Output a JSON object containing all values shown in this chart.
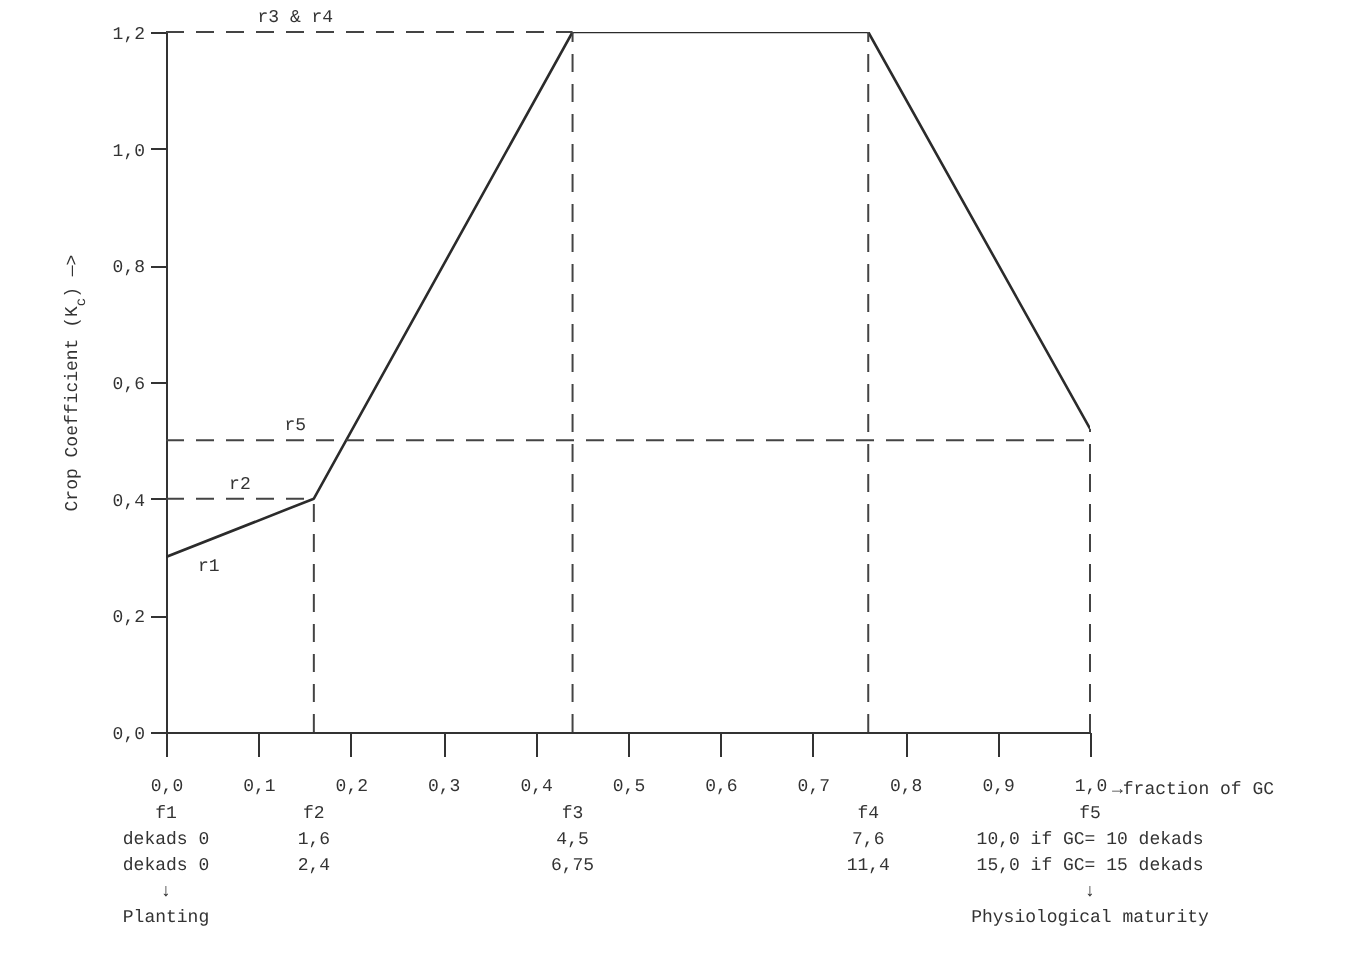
{
  "chart_data": {
    "type": "line",
    "xlabel": "→fraction of GC",
    "ylabel": "Crop Coefficient (K$_{c}$) —>",
    "x": [
      0,
      0.16,
      0.44,
      0.76,
      1.0
    ],
    "series": [
      {
        "color": "#2b2b2b",
        "values": [
          0.3,
          0.4,
          1.2,
          1.2,
          0.52
        ]
      }
    ],
    "xlim": [
      0,
      1.0
    ],
    "ylim": [
      0,
      1.2
    ],
    "xticks": [
      {
        "value": 0,
        "label": "0,0"
      },
      {
        "value": 0.1,
        "label": "0,1"
      },
      {
        "value": 0.2,
        "label": "0,2"
      },
      {
        "value": 0.3,
        "label": "0,3"
      },
      {
        "value": 0.4,
        "label": "0,4"
      },
      {
        "value": 0.5,
        "label": "0,5"
      },
      {
        "value": 0.6,
        "label": "0,6"
      },
      {
        "value": 0.7,
        "label": "0,7"
      },
      {
        "value": 0.8,
        "label": "0,8"
      },
      {
        "value": 0.9,
        "label": "0,9"
      },
      {
        "value": 1.0,
        "label": "1,0"
      }
    ],
    "yticks": [
      {
        "value": 0,
        "label": "0,0"
      },
      {
        "value": 0.2,
        "label": "0,2"
      },
      {
        "value": 0.4,
        "label": "0,4"
      },
      {
        "value": 0.6,
        "label": "0,6"
      },
      {
        "value": 0.8,
        "label": "0,8"
      },
      {
        "value": 1.0,
        "label": "1,0"
      },
      {
        "value": 1.2,
        "label": "1,2"
      }
    ],
    "ref_lines": [
      {
        "axis": "y",
        "value": 1.2,
        "label": "r3 & r4",
        "line_style": "dashed"
      },
      {
        "axis": "y",
        "value": 0.4,
        "label": "r2",
        "line_style": "dashed"
      },
      {
        "axis": "y",
        "value": 0.5,
        "label": "r5",
        "line_style": "dashed"
      },
      {
        "axis": "x",
        "value": 0.16,
        "line_style": "dashed"
      },
      {
        "axis": "x",
        "value": 0.44,
        "line_style": "dashed"
      },
      {
        "axis": "x",
        "value": 0.76,
        "line_style": "dashed"
      },
      {
        "axis": "x",
        "value": 1.0,
        "line_style": "dashed"
      }
    ],
    "annotations": [
      {
        "text": "r1",
        "x": 0,
        "y": 0.3
      },
      "f1\ndekads 0\ndekads 0\n↓\nPlanting",
      "f2\n1,6\n2,4",
      "f3\n4,5\n6,75",
      "f4\n7,6\n11,4",
      "f5\n10,0 if GC= 10 dekads\n15,0 if GC= 15 dekads\n↓\nPhysiological maturity"
    ],
    "grid": false,
    "marker": "none",
    "line_style": "solid"
  }
}
